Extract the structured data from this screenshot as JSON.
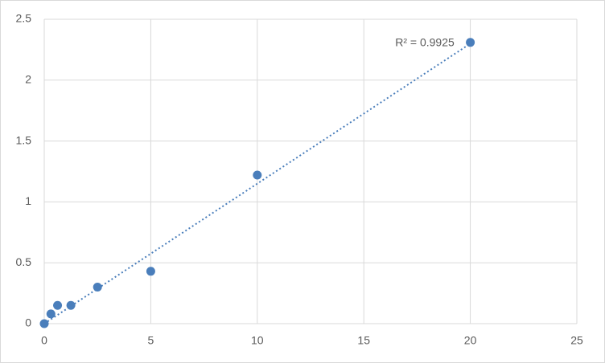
{
  "chart_data": {
    "type": "scatter",
    "x": [
      0,
      0.3125,
      0.625,
      1.25,
      2.5,
      5,
      10,
      20
    ],
    "series": [
      {
        "color": "#4a7ebb",
        "values": [
          0,
          0.08,
          0.15,
          0.15,
          0.3,
          0.43,
          1.22,
          2.31
        ]
      }
    ],
    "trendline": {
      "x": [
        0,
        20
      ],
      "y": [
        0.0,
        2.3
      ],
      "color": "#4a7ebb"
    },
    "annotation": "R² = 0.9925",
    "xlim": [
      0,
      25
    ],
    "xticks": [
      0,
      5,
      10,
      15,
      20,
      25
    ],
    "ylim": [
      0,
      2.5
    ],
    "yticks": [
      0,
      0.5,
      1,
      1.5,
      2,
      2.5
    ],
    "grid": true
  }
}
